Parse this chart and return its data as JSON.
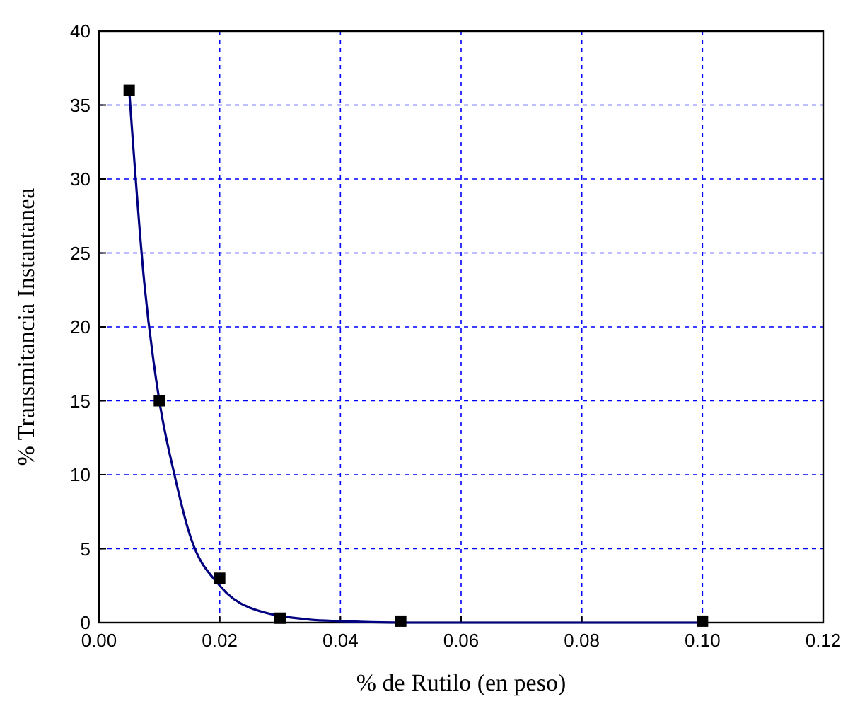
{
  "chart_data": {
    "type": "scatter",
    "xlabel": "%  de Rutilo (en peso)",
    "ylabel": "% Transmitancia Instantanea",
    "xlim": [
      0,
      0.12
    ],
    "ylim": [
      0,
      40
    ],
    "xticks": [
      {
        "value": 0,
        "label": "0.00"
      },
      {
        "value": 0.02,
        "label": "0.02"
      },
      {
        "value": 0.04,
        "label": "0.04"
      },
      {
        "value": 0.06,
        "label": "0.06"
      },
      {
        "value": 0.08,
        "label": "0.08"
      },
      {
        "value": 0.1,
        "label": "0.10"
      },
      {
        "value": 0.12,
        "label": "0.12"
      }
    ],
    "yticks": [
      0,
      5,
      10,
      15,
      20,
      25,
      30,
      35,
      40
    ],
    "grid": true,
    "series": [
      {
        "type": "line",
        "color": "#000080",
        "marker": "none",
        "line_style": "solid",
        "x": [
          0.005,
          0.0075,
          0.01,
          0.0125,
          0.015,
          0.02,
          0.025,
          0.035,
          0.04,
          0.05,
          0.07,
          0.1
        ],
        "values": [
          36,
          23,
          15,
          10,
          6,
          2.5,
          1,
          0.2,
          0.1,
          0,
          0,
          0
        ]
      },
      {
        "color": "#000000",
        "marker": "square",
        "x": [
          0.005,
          0.01,
          0.02,
          0.03,
          0.05,
          0.1
        ],
        "values": [
          36,
          15,
          3,
          0.3,
          0.1,
          0.1
        ]
      }
    ]
  }
}
